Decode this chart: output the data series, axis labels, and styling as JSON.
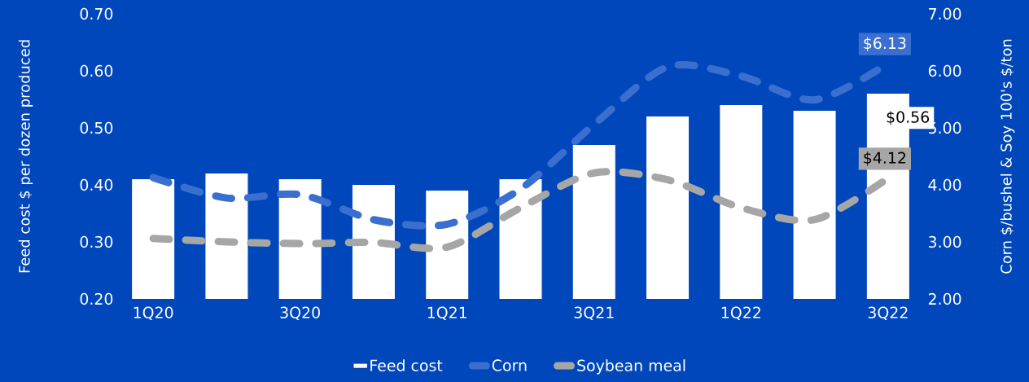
{
  "chart_data": {
    "type": "bar",
    "categories": [
      "1Q20",
      null,
      "3Q20",
      null,
      "1Q21",
      null,
      "3Q21",
      null,
      "1Q22",
      null,
      "3Q22"
    ],
    "ylabel": "Feed cost $ per dozen produced",
    "y2label": "Corn $/bushel & Soy 100's $/ton",
    "ylim": [
      0.2,
      0.7
    ],
    "yticks": [
      {
        "value": 0.2,
        "label": "0.20"
      },
      {
        "value": 0.3,
        "label": "0.30"
      },
      {
        "value": 0.4,
        "label": "0.40"
      },
      {
        "value": 0.5,
        "label": "0.50"
      },
      {
        "value": 0.6,
        "label": "0.60"
      },
      {
        "value": 0.7,
        "label": "0.70"
      }
    ],
    "y2lim": [
      2,
      7
    ],
    "y2ticks": [
      {
        "value": 2,
        "label": "2.00"
      },
      {
        "value": 3,
        "label": "3.00"
      },
      {
        "value": 4,
        "label": "4.00"
      },
      {
        "value": 5,
        "label": "5.00"
      },
      {
        "value": 6,
        "label": "6.00"
      },
      {
        "value": 7,
        "label": "7.00"
      }
    ],
    "legend": "bottom",
    "series": [
      {
        "name": "Feed cost",
        "color": "#ffffff",
        "values": [
          0.41,
          0.42,
          0.41,
          0.4,
          0.39,
          0.41,
          0.47,
          0.52,
          0.54,
          0.53,
          0.56
        ],
        "value_labels": [
          null,
          null,
          null,
          null,
          null,
          null,
          null,
          null,
          null,
          null,
          "$0.56"
        ]
      },
      {
        "name": "Corn",
        "type": "line",
        "axis": "y2",
        "color": "#3a6fcf",
        "line_style": "dashed",
        "values": [
          4.13,
          3.77,
          3.83,
          3.39,
          3.31,
          3.93,
          5.06,
          6.07,
          5.91,
          5.49,
          6.13
        ],
        "value_labels": [
          null,
          null,
          null,
          null,
          null,
          null,
          null,
          null,
          null,
          null,
          "$6.13"
        ]
      },
      {
        "name": "Soybean meal",
        "type": "line",
        "axis": "y2",
        "color": "#a6a6a6",
        "line_style": "dashed",
        "values": [
          3.06,
          3.0,
          2.97,
          2.99,
          2.91,
          3.6,
          4.21,
          4.09,
          3.6,
          3.39,
          4.12
        ],
        "value_labels": [
          null,
          null,
          null,
          null,
          null,
          null,
          null,
          null,
          null,
          null,
          "$4.12"
        ]
      }
    ]
  }
}
